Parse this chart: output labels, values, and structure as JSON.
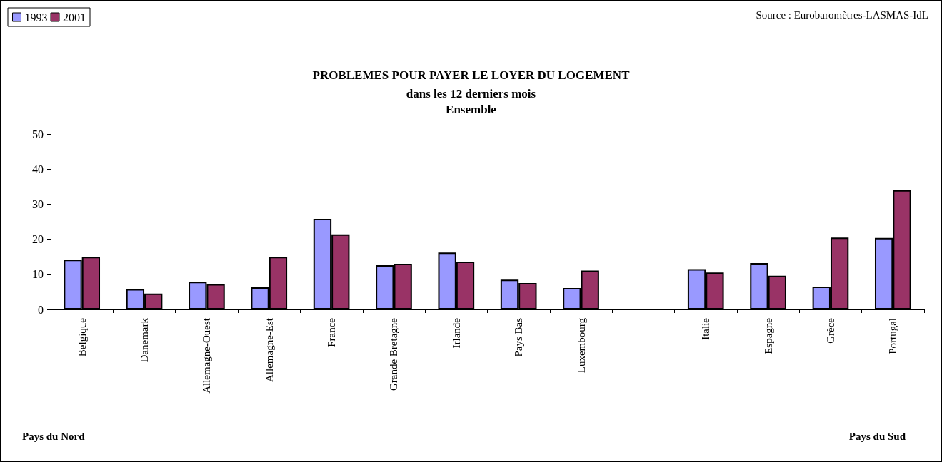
{
  "chart_data": {
    "type": "bar",
    "title": "PROBLEMES POUR PAYER LE LOYER DU LOGEMENT",
    "subtitle": "dans les 12 derniers mois\nEnsemble",
    "categories": [
      "Belgique",
      "Danemark",
      "Allemagne-Ouest",
      "Allemagne-Est",
      "France",
      "Grande Bretagne",
      "Irlande",
      "Pays Bas",
      "Luxembourg",
      null,
      "Italie",
      "Espagne",
      "Grèce",
      "Portugal"
    ],
    "series": [
      {
        "name": "1993",
        "color": "#9999ff",
        "values": [
          14.2,
          5.8,
          7.9,
          6.3,
          25.8,
          12.6,
          16.2,
          8.5,
          6.1,
          null,
          11.5,
          13.2,
          6.5,
          20.4
        ]
      },
      {
        "name": "2001",
        "color": "#993366",
        "values": [
          15.0,
          4.5,
          7.2,
          15.0,
          21.4,
          13.0,
          13.6,
          7.5,
          11.1,
          null,
          10.5,
          9.6,
          20.5,
          34.0
        ]
      }
    ],
    "ylim": [
      0,
      50
    ],
    "yticks": [
      0,
      10,
      20,
      30,
      40,
      50
    ],
    "grid": false,
    "legend": "top left",
    "annotations": [
      "Source : Eurobaromètres-LASMAS-IdL",
      "Pays du Nord",
      "Pays du Sud"
    ]
  }
}
